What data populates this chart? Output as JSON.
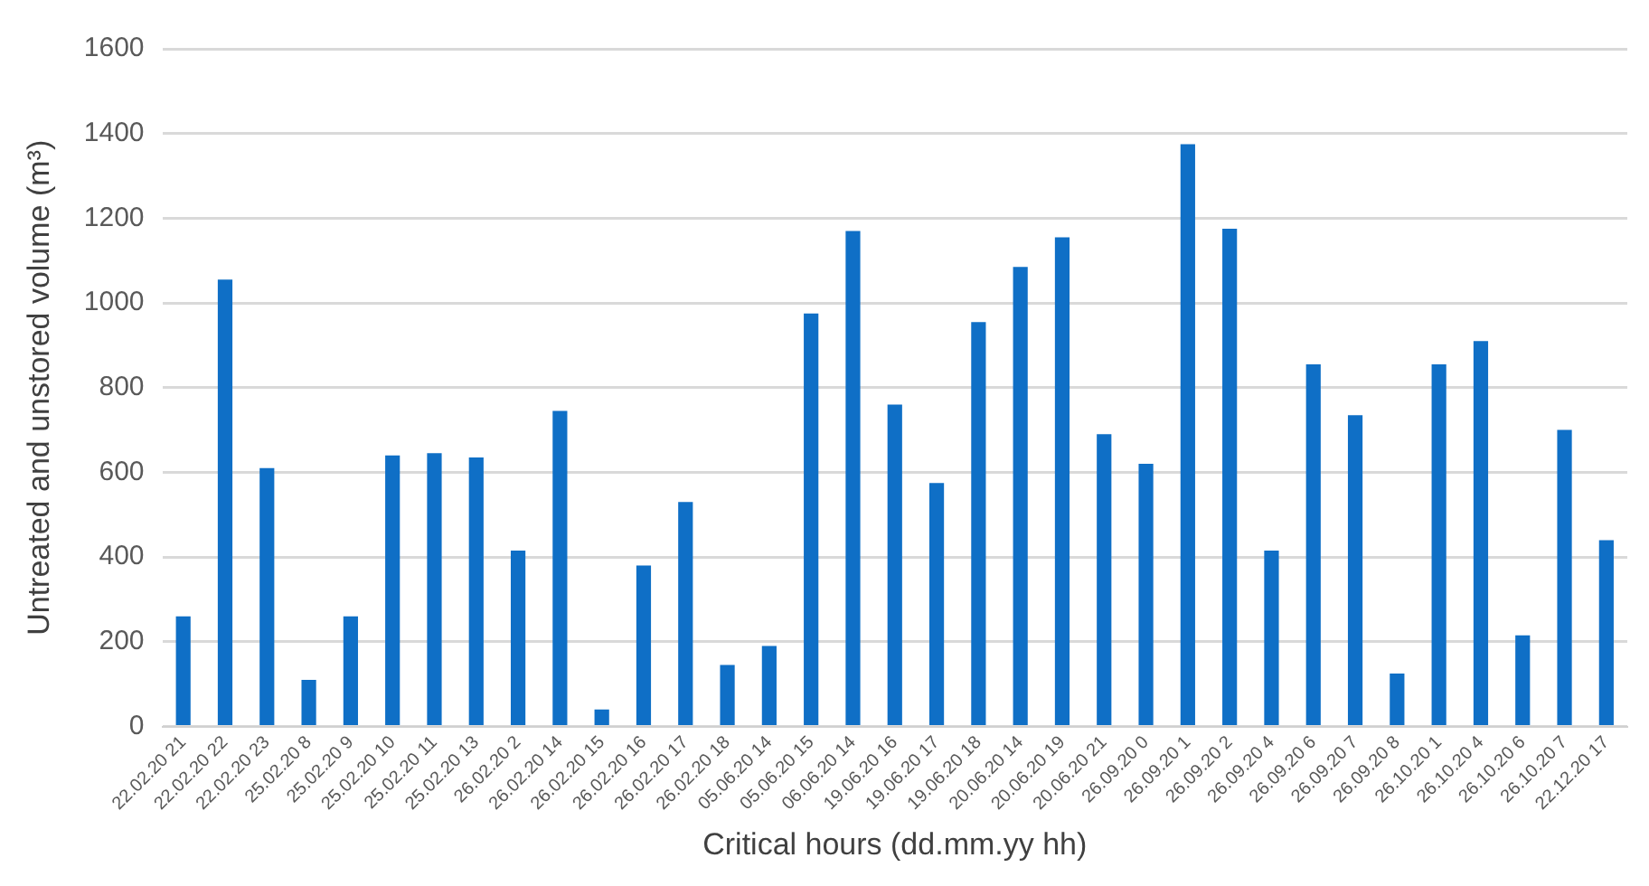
{
  "chart_data": {
    "type": "bar",
    "xlabel": "Critical hours (dd.mm.yy hh)",
    "ylabel": "Untreated and unstored volume (m³)",
    "categories": [
      "22.02.20 21",
      "22.02.20 22",
      "22.02.20 23",
      "25.02.20 8",
      "25.02.20 9",
      "25.02.20 10",
      "25.02.20 11",
      "25.02.20 13",
      "26.02.20 2",
      "26.02.20 14",
      "26.02.20 15",
      "26.02.20 16",
      "26.02.20 17",
      "26.02.20 18",
      "05.06.20 14",
      "05.06.20 15",
      "06.06.20 14",
      "19.06.20 16",
      "19.06.20 17",
      "19.06.20 18",
      "20.06.20 14",
      "20.06.20 19",
      "20.06.20 21",
      "26.09.20 0",
      "26.09.20 1",
      "26.09.20 2",
      "26.09.20 4",
      "26.09.20 6",
      "26.09.20 7",
      "26.09.20 8",
      "26.10.20 1",
      "26.10.20 4",
      "26.10.20 6",
      "26.10.20 7",
      "22.12.20 17"
    ],
    "values": [
      260,
      1055,
      610,
      110,
      260,
      640,
      645,
      635,
      415,
      745,
      40,
      380,
      530,
      145,
      190,
      975,
      1170,
      760,
      575,
      955,
      1085,
      1155,
      690,
      620,
      1375,
      1175,
      415,
      855,
      735,
      125,
      855,
      910,
      215,
      700,
      440
    ],
    "color": "#0f6fc6",
    "ylim": [
      0,
      1600
    ],
    "yticks": [
      0,
      200,
      400,
      600,
      800,
      1000,
      1200,
      1400,
      1600
    ],
    "grid": "y"
  }
}
